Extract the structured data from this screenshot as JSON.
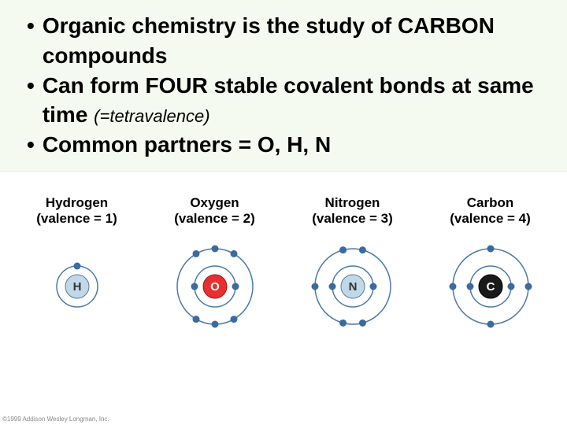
{
  "bullets": {
    "b1": "Organic chemistry is the study of CARBON compounds",
    "b2_part1": "Can form FOUR stable covalent bonds at same time ",
    "b2_part2": "(=tetravalence)",
    "b3": "Common partners = O, H, N"
  },
  "atoms": {
    "hydrogen": {
      "name": "Hydrogen",
      "valence_text": "(valence = 1)",
      "symbol": "H",
      "shells": 1,
      "nucleus_fill": "#c0d8e8",
      "nucleus_stroke": "#5a7a9a",
      "symbol_color": "#333333",
      "electrons": [
        {
          "shell": 1,
          "angle": 90
        }
      ]
    },
    "oxygen": {
      "name": "Oxygen",
      "valence_text": "(valence = 2)",
      "symbol": "O",
      "shells": 2,
      "nucleus_fill": "#e63030",
      "nucleus_stroke": "#a01818",
      "symbol_color": "#ffffff",
      "electrons": [
        {
          "shell": 1,
          "angle": 0
        },
        {
          "shell": 1,
          "angle": 180
        },
        {
          "shell": 2,
          "angle": 60
        },
        {
          "shell": 2,
          "angle": 90
        },
        {
          "shell": 2,
          "angle": 120
        },
        {
          "shell": 2,
          "angle": 240
        },
        {
          "shell": 2,
          "angle": 270
        },
        {
          "shell": 2,
          "angle": 300
        }
      ]
    },
    "nitrogen": {
      "name": "Nitrogen",
      "valence_text": "(valence = 3)",
      "symbol": "N",
      "shells": 2,
      "nucleus_fill": "#c0d8e8",
      "nucleus_stroke": "#5a7a9a",
      "symbol_color": "#333333",
      "electrons": [
        {
          "shell": 1,
          "angle": 0
        },
        {
          "shell": 1,
          "angle": 180
        },
        {
          "shell": 2,
          "angle": 75
        },
        {
          "shell": 2,
          "angle": 105
        },
        {
          "shell": 2,
          "angle": 180
        },
        {
          "shell": 2,
          "angle": 255
        },
        {
          "shell": 2,
          "angle": 285
        }
      ]
    },
    "carbon": {
      "name": "Carbon",
      "valence_text": "(valence = 4)",
      "symbol": "C",
      "shells": 2,
      "nucleus_fill": "#1a1a1a",
      "nucleus_stroke": "#000000",
      "symbol_color": "#ffffff",
      "electrons": [
        {
          "shell": 1,
          "angle": 0
        },
        {
          "shell": 1,
          "angle": 180
        },
        {
          "shell": 2,
          "angle": 0
        },
        {
          "shell": 2,
          "angle": 90
        },
        {
          "shell": 2,
          "angle": 180
        },
        {
          "shell": 2,
          "angle": 270
        }
      ]
    }
  },
  "style": {
    "shell_stroke": "#4a7aa8",
    "electron_fill": "#3a6aa0",
    "electron_radius": 4.5,
    "nucleus_radius": 15,
    "shell_radii": [
      26,
      48
    ],
    "svg_size": 130
  },
  "copyright": "©1999 Addison Wesley Longman, Inc."
}
